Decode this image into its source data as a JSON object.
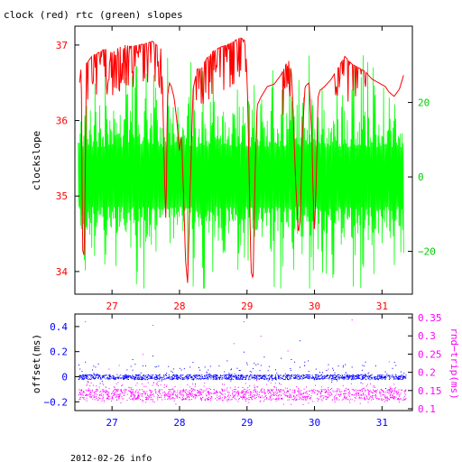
{
  "title": "clock (red) rtc (green) slopes",
  "footer": "2012-02-26 info",
  "colors": {
    "clock": "#ff0000",
    "rtc": "#00ff00",
    "offset": "#0000ff",
    "rndtrip": "#ff00ff",
    "axis": "#000000"
  },
  "chart_data": [
    {
      "type": "line",
      "title": "clock (red) rtc (green) slopes",
      "ylabel": "clockslope",
      "y2label": "",
      "xlim": [
        26.45,
        31.45
      ],
      "ylim": [
        33.7,
        37.25
      ],
      "y2lim": [
        -31.5,
        40.5
      ],
      "x_ticks": [
        27,
        28,
        29,
        30,
        31
      ],
      "x_tick_labels": [
        "27",
        "28",
        "29",
        "30",
        "31"
      ],
      "y_ticks": [
        34,
        35,
        36,
        37
      ],
      "y_tick_labels": [
        "34",
        "35",
        "36",
        "37"
      ],
      "y2_ticks": [
        -20,
        0,
        20
      ],
      "y2_tick_labels": [
        "−20",
        "0",
        "20"
      ],
      "grid": false,
      "series": [
        {
          "name": "clock",
          "color": "#ff0000",
          "axis": "left",
          "points": [
            [
              26.52,
              36.5
            ],
            [
              26.55,
              36.78
            ],
            [
              26.56,
              34.3
            ],
            [
              26.59,
              34.2
            ],
            [
              26.62,
              36.75
            ],
            [
              26.7,
              36.85
            ],
            [
              26.8,
              36.9
            ],
            [
              26.9,
              36.95
            ],
            [
              27.0,
              36.9
            ],
            [
              27.1,
              36.97
            ],
            [
              27.2,
              37.0
            ],
            [
              27.3,
              36.98
            ],
            [
              27.4,
              37.0
            ],
            [
              27.5,
              37.02
            ],
            [
              27.6,
              37.05
            ],
            [
              27.68,
              36.98
            ],
            [
              27.7,
              36.3
            ],
            [
              27.72,
              37.0
            ],
            [
              27.75,
              36.4
            ],
            [
              27.78,
              35.2
            ],
            [
              27.8,
              34.6
            ],
            [
              27.82,
              36.3
            ],
            [
              27.85,
              36.5
            ],
            [
              27.88,
              36.45
            ],
            [
              27.92,
              36.3
            ],
            [
              27.96,
              36.0
            ],
            [
              28.0,
              35.6
            ],
            [
              28.03,
              35.8
            ],
            [
              28.06,
              35.0
            ],
            [
              28.09,
              34.15
            ],
            [
              28.12,
              33.85
            ],
            [
              28.14,
              34.5
            ],
            [
              28.2,
              36.4
            ],
            [
              28.26,
              36.68
            ],
            [
              28.33,
              36.7
            ],
            [
              28.4,
              36.82
            ],
            [
              28.5,
              36.92
            ],
            [
              28.6,
              36.97
            ],
            [
              28.7,
              37.0
            ],
            [
              28.8,
              37.05
            ],
            [
              28.9,
              37.1
            ],
            [
              28.98,
              37.05
            ],
            [
              29.01,
              36.3
            ],
            [
              29.04,
              34.9
            ],
            [
              29.06,
              34.0
            ],
            [
              29.09,
              33.9
            ],
            [
              29.12,
              35.3
            ],
            [
              29.15,
              36.2
            ],
            [
              29.2,
              36.3
            ],
            [
              29.3,
              36.45
            ],
            [
              29.4,
              36.48
            ],
            [
              29.5,
              36.6
            ],
            [
              29.58,
              36.75
            ],
            [
              29.63,
              36.8
            ],
            [
              29.66,
              36.6
            ],
            [
              29.68,
              36.2
            ],
            [
              29.72,
              35.2
            ],
            [
              29.76,
              34.5
            ],
            [
              29.79,
              34.7
            ],
            [
              29.82,
              35.8
            ],
            [
              29.86,
              36.45
            ],
            [
              29.92,
              36.5
            ],
            [
              29.96,
              35.8
            ],
            [
              29.98,
              35.0
            ],
            [
              30.0,
              34.5
            ],
            [
              30.03,
              35.3
            ],
            [
              30.05,
              36.3
            ],
            [
              30.08,
              36.4
            ],
            [
              30.15,
              36.45
            ],
            [
              30.25,
              36.55
            ],
            [
              30.35,
              36.7
            ],
            [
              30.45,
              36.85
            ],
            [
              30.55,
              36.75
            ],
            [
              30.65,
              36.7
            ],
            [
              30.75,
              36.65
            ],
            [
              30.85,
              36.55
            ],
            [
              30.95,
              36.5
            ],
            [
              31.05,
              36.45
            ],
            [
              31.1,
              36.38
            ],
            [
              31.18,
              36.32
            ],
            [
              31.26,
              36.42
            ],
            [
              31.32,
              36.6
            ]
          ]
        },
        {
          "name": "rtc",
          "color": "#00ff00",
          "axis": "right",
          "points": [
            [
              26.5,
              2
            ],
            [
              26.55,
              -12
            ],
            [
              26.6,
              25
            ],
            [
              26.68,
              -16
            ],
            [
              26.75,
              22
            ],
            [
              26.82,
              -14
            ],
            [
              26.9,
              28
            ],
            [
              26.98,
              -18
            ],
            [
              27.05,
              30
            ],
            [
              27.12,
              -12
            ],
            [
              27.2,
              24
            ],
            [
              27.28,
              -16
            ],
            [
              27.36,
              34
            ],
            [
              27.44,
              -10
            ],
            [
              27.5,
              26
            ],
            [
              27.58,
              -15
            ],
            [
              27.65,
              22
            ],
            [
              27.72,
              -12
            ],
            [
              27.8,
              8
            ],
            [
              27.85,
              -20
            ],
            [
              27.9,
              16
            ],
            [
              27.98,
              -14
            ],
            [
              28.05,
              18
            ],
            [
              28.12,
              -22
            ],
            [
              28.2,
              26
            ],
            [
              28.28,
              -14
            ],
            [
              28.36,
              32
            ],
            [
              28.44,
              -12
            ],
            [
              28.5,
              24
            ],
            [
              28.58,
              -16
            ],
            [
              28.65,
              30
            ],
            [
              28.72,
              -14
            ],
            [
              28.8,
              22
            ],
            [
              28.88,
              -18
            ],
            [
              28.95,
              26
            ],
            [
              29.02,
              -26
            ],
            [
              29.08,
              14
            ],
            [
              29.15,
              -16
            ],
            [
              29.22,
              24
            ],
            [
              29.3,
              -12
            ],
            [
              29.38,
              30
            ],
            [
              29.45,
              -14
            ],
            [
              29.52,
              22
            ],
            [
              29.6,
              -16
            ],
            [
              29.68,
              28
            ],
            [
              29.75,
              -20
            ],
            [
              29.82,
              24
            ],
            [
              29.9,
              -12
            ],
            [
              29.98,
              30
            ],
            [
              30.05,
              -18
            ],
            [
              30.12,
              22
            ],
            [
              30.2,
              -14
            ],
            [
              30.28,
              28
            ],
            [
              30.35,
              -10
            ],
            [
              30.42,
              24
            ],
            [
              30.5,
              -16
            ],
            [
              30.58,
              34
            ],
            [
              30.65,
              -22
            ],
            [
              30.72,
              24
            ],
            [
              30.8,
              -12
            ],
            [
              30.88,
              28
            ],
            [
              30.95,
              -14
            ],
            [
              31.02,
              22
            ],
            [
              31.1,
              -26
            ],
            [
              31.18,
              20
            ],
            [
              31.26,
              -10
            ],
            [
              31.32,
              14
            ]
          ]
        }
      ]
    },
    {
      "type": "scatter",
      "ylabel": "offset(ms)",
      "y2label": "rnd−trip(ms)",
      "xlim": [
        26.45,
        31.45
      ],
      "ylim": [
        -0.27,
        0.5
      ],
      "y2lim": [
        0.095,
        0.36
      ],
      "x_ticks": [
        27,
        28,
        29,
        30,
        31
      ],
      "x_tick_labels": [
        "27",
        "28",
        "29",
        "30",
        "31"
      ],
      "y_ticks": [
        -0.2,
        0,
        0.2,
        0.4
      ],
      "y_tick_labels": [
        "−0.2",
        "0",
        "0.2",
        "0.4"
      ],
      "y2_ticks": [
        0.1,
        0.15,
        0.2,
        0.25,
        0.3,
        0.35
      ],
      "y2_tick_labels": [
        "0.1",
        "0.15",
        "0.2",
        "0.25",
        "0.3",
        "0.35"
      ],
      "grid": false,
      "series": [
        {
          "name": "offset",
          "color": "#0000ff",
          "axis": "left",
          "typical": 0.0,
          "spread": 0.04,
          "outliers": [
            [
              26.6,
              0.12
            ],
            [
              27.3,
              0.14
            ],
            [
              27.6,
              0.17
            ],
            [
              28.15,
              0.08
            ],
            [
              28.7,
              0.13
            ],
            [
              28.95,
              0.2
            ],
            [
              29.0,
              0.1
            ],
            [
              29.25,
              0.16
            ],
            [
              29.5,
              0.15
            ],
            [
              29.7,
              0.12
            ],
            [
              29.78,
              0.29
            ],
            [
              29.85,
              0.12
            ],
            [
              30.2,
              0.1
            ],
            [
              30.55,
              0.08
            ],
            [
              30.75,
              0.12
            ],
            [
              30.9,
              0.09
            ],
            [
              31.15,
              0.07
            ],
            [
              26.9,
              -0.08
            ],
            [
              27.7,
              -0.1
            ],
            [
              28.55,
              -0.12
            ],
            [
              29.35,
              -0.1
            ],
            [
              30.1,
              -0.11
            ],
            [
              31.05,
              -0.09
            ],
            [
              28.0,
              0.07
            ],
            [
              29.1,
              0.11
            ],
            [
              29.65,
              0.14
            ],
            [
              27.45,
              0.09
            ],
            [
              30.45,
              0.1
            ],
            [
              26.75,
              0.08
            ],
            [
              29.9,
              0.13
            ]
          ]
        },
        {
          "name": "rnd-trip",
          "color": "#ff00ff",
          "axis": "right",
          "typical": 0.14,
          "spread": 0.015,
          "outliers": [
            [
              26.6,
              0.34
            ],
            [
              27.6,
              0.33
            ],
            [
              28.95,
              0.34
            ],
            [
              30.55,
              0.345
            ],
            [
              27.45,
              0.25
            ],
            [
              28.8,
              0.28
            ],
            [
              29.85,
              0.22
            ],
            [
              31.1,
              0.23
            ],
            [
              27.1,
              0.22
            ],
            [
              29.6,
              0.26
            ],
            [
              30.2,
              0.21
            ],
            [
              26.95,
              0.21
            ],
            [
              28.4,
              0.2
            ],
            [
              29.2,
              0.3
            ],
            [
              30.8,
              0.2
            ],
            [
              31.3,
              0.19
            ]
          ]
        }
      ]
    }
  ]
}
